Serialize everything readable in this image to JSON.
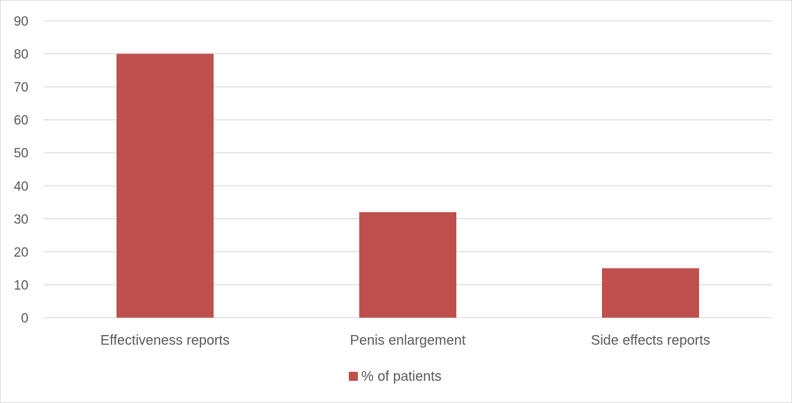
{
  "chart_data": {
    "type": "bar",
    "title": "",
    "xlabel": "",
    "ylabel": "",
    "categories": [
      "Effectiveness reports",
      "Penis enlargement",
      "Side effects reports"
    ],
    "series": [
      {
        "name": "% of patients",
        "values": [
          80,
          32,
          15
        ],
        "color": "#c0504d"
      }
    ],
    "ylim": [
      0,
      90
    ],
    "yticks": [
      0,
      10,
      20,
      30,
      40,
      50,
      60,
      70,
      80,
      90
    ],
    "grid": true,
    "legend": "bottom",
    "colors": {
      "gridline": "#d9d9d9",
      "text": "#595959",
      "axis": "#d9d9d9"
    }
  }
}
